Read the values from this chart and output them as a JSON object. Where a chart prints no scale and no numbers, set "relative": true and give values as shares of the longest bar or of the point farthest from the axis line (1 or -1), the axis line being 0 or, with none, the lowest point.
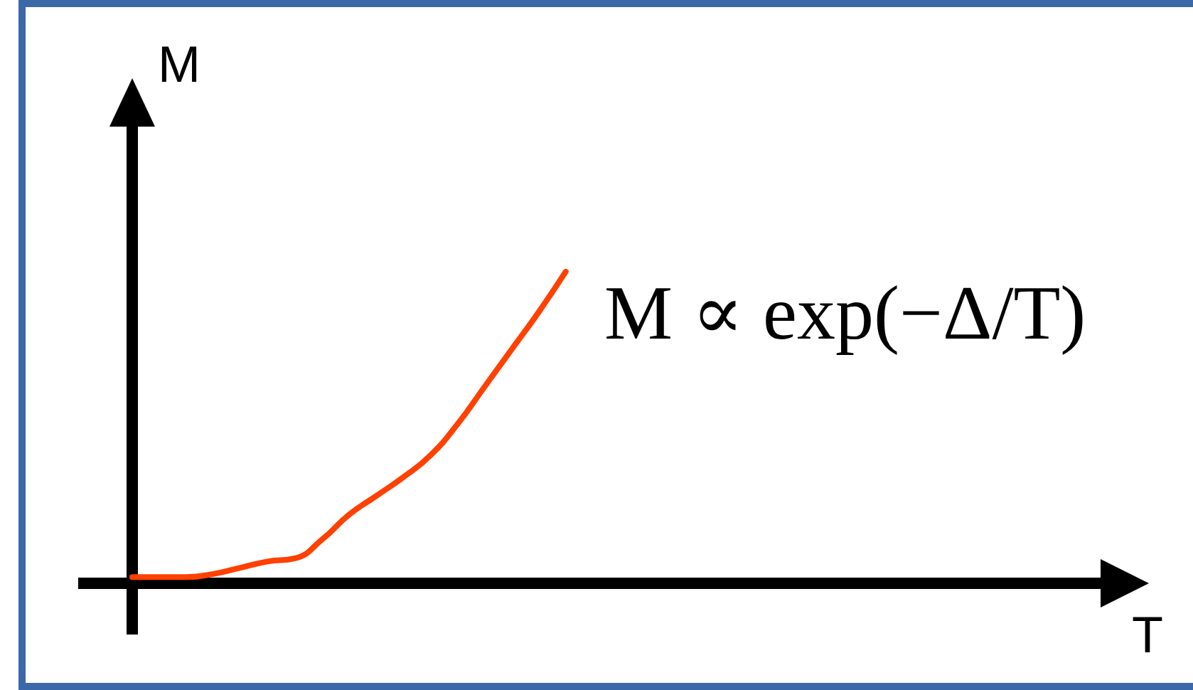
{
  "chart_data": {
    "type": "line",
    "xlabel": "T",
    "ylabel": "M",
    "annotations": [
      "M ∝ exp(−Δ/T)"
    ],
    "relative": true,
    "categories": [
      null,
      null,
      null,
      null,
      null,
      null,
      null,
      null,
      null,
      null,
      null,
      null,
      null,
      null,
      null,
      null,
      null,
      null,
      null,
      null,
      null,
      null,
      null,
      null,
      null,
      null,
      null,
      null,
      null,
      null,
      null,
      null,
      null,
      null,
      null,
      null,
      null,
      null
    ],
    "series": [
      {
        "color": "#ff4000",
        "values": [
          0.02,
          0.02,
          0.02,
          0.03,
          0.05,
          0.07,
          0.08,
          0.14,
          0.22,
          0.28,
          0.34,
          0.41,
          0.51,
          0.63,
          0.75,
          0.87,
          1.0,
          null,
          null,
          null,
          null,
          null,
          null,
          null,
          null,
          null,
          null,
          null,
          null,
          null,
          null,
          null,
          null,
          null,
          null,
          null,
          null,
          null
        ]
      }
    ]
  }
}
